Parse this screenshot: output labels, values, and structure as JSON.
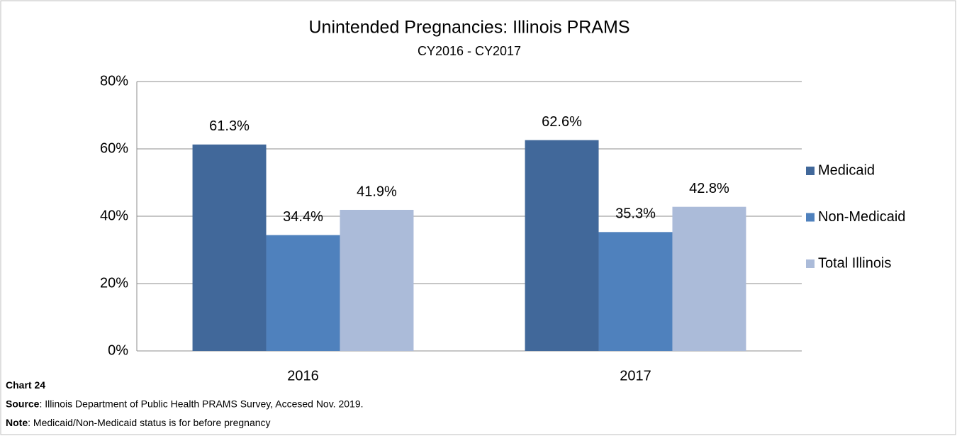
{
  "chart_data": {
    "type": "bar",
    "title": "Unintended Pregnancies: Illinois PRAMS",
    "subtitle": "CY2016 - CY2017",
    "categories": [
      "2016",
      "2017"
    ],
    "series": [
      {
        "name": "Medicaid",
        "color": "#41689a",
        "values": [
          61.3,
          62.6
        ],
        "value_labels": [
          "61.3%",
          "62.6%"
        ]
      },
      {
        "name": "Non-Medicaid",
        "color": "#4f81bd",
        "values": [
          34.4,
          35.3
        ],
        "value_labels": [
          "34.4%",
          "35.3%"
        ]
      },
      {
        "name": "Total Illinois",
        "color": "#abbbd9",
        "values": [
          41.9,
          42.8
        ],
        "value_labels": [
          "41.9%",
          "42.8%"
        ]
      }
    ],
    "ylim": [
      0,
      80
    ],
    "yticks": [
      {
        "value": 0,
        "label": "0%"
      },
      {
        "value": 20,
        "label": "20%"
      },
      {
        "value": 40,
        "label": "40%"
      },
      {
        "value": 60,
        "label": "60%"
      },
      {
        "value": 80,
        "label": "80%"
      }
    ],
    "grid": true,
    "legend": "right",
    "footnotes": [
      {
        "label": "Chart 24"
      },
      {
        "label": "Source",
        "text": ": Illinois Department of Public Health PRAMS Survey, Accesed Nov. 2019."
      },
      {
        "label": "Note",
        "text": ": Medicaid/Non-Medicaid status is for before pregnancy"
      }
    ]
  }
}
